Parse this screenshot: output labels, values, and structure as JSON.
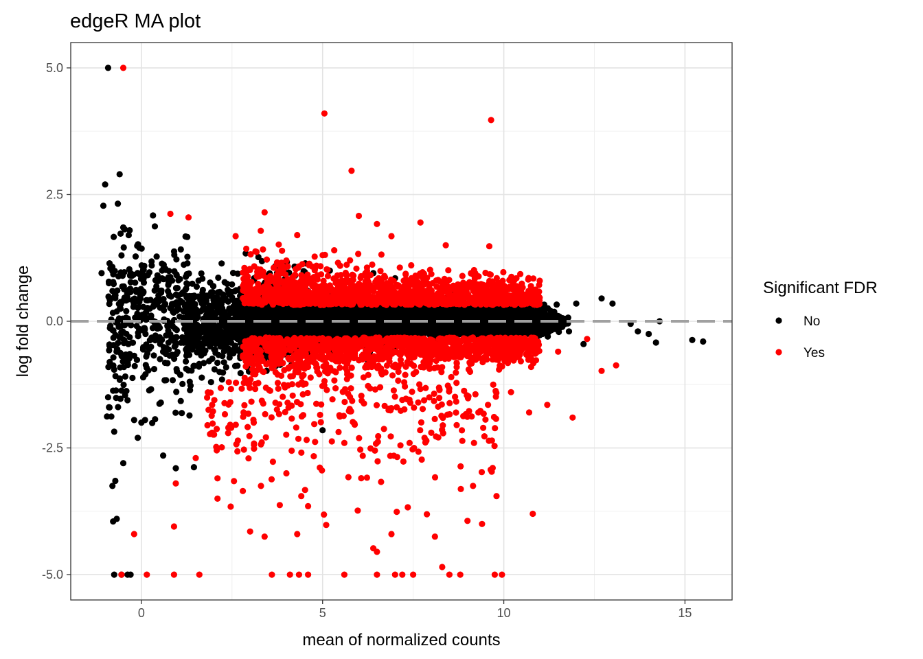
{
  "chart_data": {
    "type": "scatter",
    "title": "edgeR MA plot",
    "xlabel": "mean of normalized counts",
    "ylabel": "log fold change",
    "xlim": [
      -1.95,
      16.3
    ],
    "ylim": [
      -5.5,
      5.5
    ],
    "x_ticks": [
      0,
      5,
      10,
      15
    ],
    "x_tick_labels": [
      "0",
      "5",
      "10",
      "15"
    ],
    "y_ticks": [
      5,
      2.5,
      0,
      -2.5,
      -5
    ],
    "y_tick_labels": [
      "5.0",
      "2.5",
      "0.0",
      "-2.5",
      "-5.0"
    ],
    "grid": true,
    "reference_line": {
      "y": 0,
      "style": "dashed",
      "color": "#a0a0a0"
    },
    "legend": {
      "title": "Significant FDR",
      "position": "right",
      "entries": [
        {
          "label": "No",
          "color": "#000000"
        },
        {
          "label": "Yes",
          "color": "#ff0000"
        }
      ]
    },
    "series": [
      {
        "name": "No",
        "color": "#000000",
        "points": [
          [
            -0.92,
            5.0
          ],
          [
            -0.75,
            -5.0
          ],
          [
            -0.55,
            -5.0
          ],
          [
            -0.38,
            -5.0
          ],
          [
            -0.3,
            -5.0
          ],
          [
            -0.6,
            2.9
          ],
          [
            -1.0,
            2.7
          ],
          [
            -1.05,
            2.28
          ],
          [
            -0.65,
            2.32
          ],
          [
            -0.5,
            1.85
          ],
          [
            -0.35,
            1.7
          ],
          [
            -0.8,
            -3.25
          ],
          [
            -0.72,
            -3.15
          ],
          [
            -0.78,
            -3.95
          ],
          [
            -0.68,
            -3.9
          ],
          [
            -0.5,
            -2.8
          ],
          [
            -0.92,
            -1.5
          ],
          [
            -0.88,
            -1.7
          ],
          [
            -0.83,
            -1.88
          ],
          [
            -0.75,
            -2.18
          ],
          [
            -0.1,
            -2.3
          ],
          [
            0.6,
            -2.65
          ],
          [
            0.95,
            -2.9
          ],
          [
            1.45,
            -2.88
          ],
          [
            5.0,
            -2.15
          ],
          [
            5.2,
            1.0
          ],
          [
            6.4,
            0.95
          ],
          [
            7.0,
            0.85
          ],
          [
            12.2,
            -0.45
          ],
          [
            12.7,
            0.45
          ],
          [
            13.0,
            0.35
          ],
          [
            14.2,
            -0.42
          ],
          [
            15.2,
            -0.37
          ],
          [
            15.5,
            -0.4
          ],
          [
            13.7,
            -0.2
          ],
          [
            14.0,
            -0.25
          ],
          [
            14.3,
            0.0
          ],
          [
            13.5,
            -0.05
          ],
          [
            11.8,
            -0.2
          ],
          [
            12.0,
            0.35
          ],
          [
            -0.2,
            -1.95
          ],
          [
            0.1,
            -1.95
          ],
          [
            0.0,
            -2.0
          ],
          [
            -0.55,
            1.3
          ],
          [
            -1.1,
            0.95
          ]
        ]
      },
      {
        "name": "Yes",
        "color": "#ff0000",
        "points": [
          [
            -0.5,
            5.0
          ],
          [
            5.05,
            4.1
          ],
          [
            9.65,
            3.97
          ],
          [
            5.8,
            2.97
          ],
          [
            3.4,
            2.15
          ],
          [
            0.8,
            2.12
          ],
          [
            1.3,
            2.05
          ],
          [
            6.0,
            2.08
          ],
          [
            6.5,
            1.92
          ],
          [
            7.7,
            1.95
          ],
          [
            4.3,
            1.7
          ],
          [
            6.9,
            1.68
          ],
          [
            9.6,
            1.48
          ],
          [
            8.4,
            1.5
          ],
          [
            2.6,
            1.68
          ],
          [
            -0.2,
            -4.2
          ],
          [
            0.9,
            -4.05
          ],
          [
            3.0,
            -4.15
          ],
          [
            3.4,
            -4.25
          ],
          [
            4.3,
            -4.2
          ],
          [
            6.4,
            -4.48
          ],
          [
            6.5,
            -4.55
          ],
          [
            6.9,
            -4.2
          ],
          [
            8.1,
            -4.25
          ],
          [
            9.4,
            -4.0
          ],
          [
            10.8,
            -3.8
          ],
          [
            0.95,
            -3.2
          ],
          [
            2.1,
            -3.1
          ],
          [
            2.1,
            -3.5
          ],
          [
            2.8,
            -3.35
          ],
          [
            3.3,
            -3.25
          ],
          [
            4.0,
            -3.0
          ],
          [
            4.6,
            -3.65
          ],
          [
            5.1,
            -4.02
          ],
          [
            9.8,
            -3.45
          ],
          [
            11.9,
            -1.9
          ],
          [
            12.7,
            -0.98
          ],
          [
            13.1,
            -0.87
          ],
          [
            12.3,
            -0.35
          ],
          [
            11.5,
            -0.6
          ],
          [
            10.7,
            -1.8
          ],
          [
            11.2,
            -1.65
          ],
          [
            8.3,
            -4.85
          ],
          [
            -0.55,
            -5.0
          ],
          [
            0.15,
            -5.0
          ],
          [
            0.9,
            -5.0
          ],
          [
            1.6,
            -5.0
          ],
          [
            3.6,
            -5.0
          ],
          [
            4.1,
            -5.0
          ],
          [
            4.35,
            -5.0
          ],
          [
            4.6,
            -5.0
          ],
          [
            5.6,
            -5.0
          ],
          [
            6.5,
            -5.0
          ],
          [
            7.0,
            -5.0
          ],
          [
            7.2,
            -5.0
          ],
          [
            7.5,
            -5.0
          ],
          [
            8.5,
            -5.0
          ],
          [
            8.8,
            -5.0
          ],
          [
            9.75,
            -5.0
          ],
          [
            9.95,
            -5.0
          ],
          [
            1.5,
            -2.7
          ],
          [
            1.95,
            -2.2
          ],
          [
            2.4,
            -2.1
          ],
          [
            3.1,
            -2.0
          ],
          [
            5.6,
            -2.4
          ],
          [
            7.4,
            -2.4
          ],
          [
            8.0,
            -2.2
          ],
          [
            8.7,
            -2.05
          ],
          [
            9.3,
            -1.8
          ],
          [
            10.2,
            -1.4
          ]
        ]
      }
    ]
  }
}
